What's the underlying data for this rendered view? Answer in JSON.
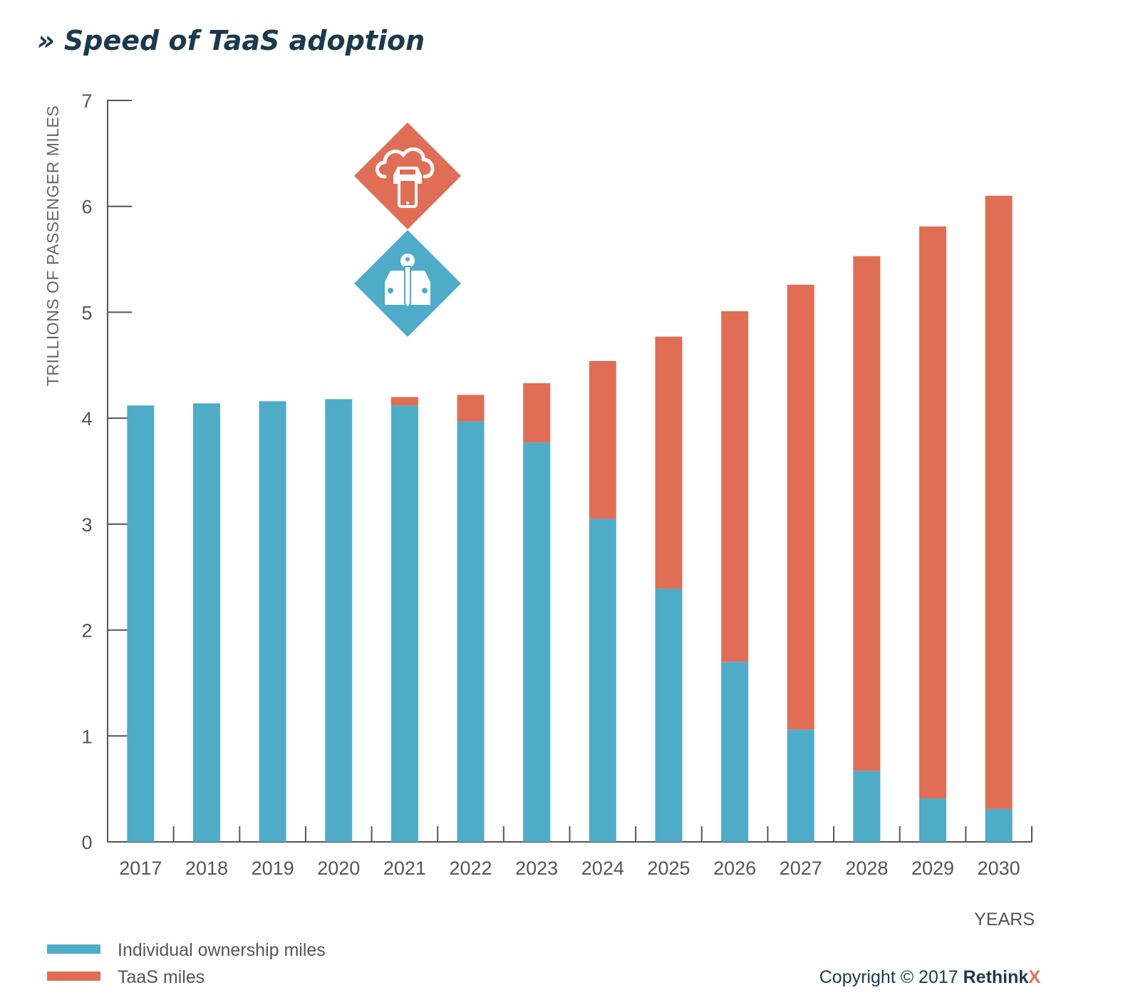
{
  "chart_data": {
    "type": "bar",
    "stacked": true,
    "title": "» Speed of TaaS adoption",
    "xlabel": "YEARS",
    "ylabel": "TRILLIONS OF PASSENGER MILES",
    "ylim": [
      0,
      7
    ],
    "yticks": [
      "0",
      "1",
      "2",
      "3",
      "4",
      "5",
      "6",
      "7"
    ],
    "categories": [
      "2017",
      "2018",
      "2019",
      "2020",
      "2021",
      "2022",
      "2023",
      "2024",
      "2025",
      "2026",
      "2027",
      "2028",
      "2029",
      "2030"
    ],
    "series": [
      {
        "name": "Individual ownership miles",
        "color": "#4eacc8",
        "values": [
          4.12,
          4.14,
          4.16,
          4.18,
          4.12,
          3.97,
          3.77,
          3.05,
          2.39,
          1.7,
          1.06,
          0.67,
          0.41,
          0.31
        ]
      },
      {
        "name": "TaaS miles",
        "color": "#e06e55",
        "values": [
          0,
          0,
          0,
          0,
          0.08,
          0.25,
          0.56,
          1.49,
          2.38,
          3.31,
          4.2,
          4.86,
          5.4,
          5.79
        ]
      }
    ],
    "legend": "bottom-left",
    "grid": false
  },
  "icons": [
    {
      "name": "taas-cloud-car-phone-icon",
      "color": "#e06e55"
    },
    {
      "name": "car-ownership-key-icon",
      "color": "#4eacc8"
    }
  ],
  "copyright": {
    "prefix": "Copyright © 2017 ",
    "brand": "Rethink",
    "brand_x": "X",
    "brand_x_color": "#e06e55"
  }
}
